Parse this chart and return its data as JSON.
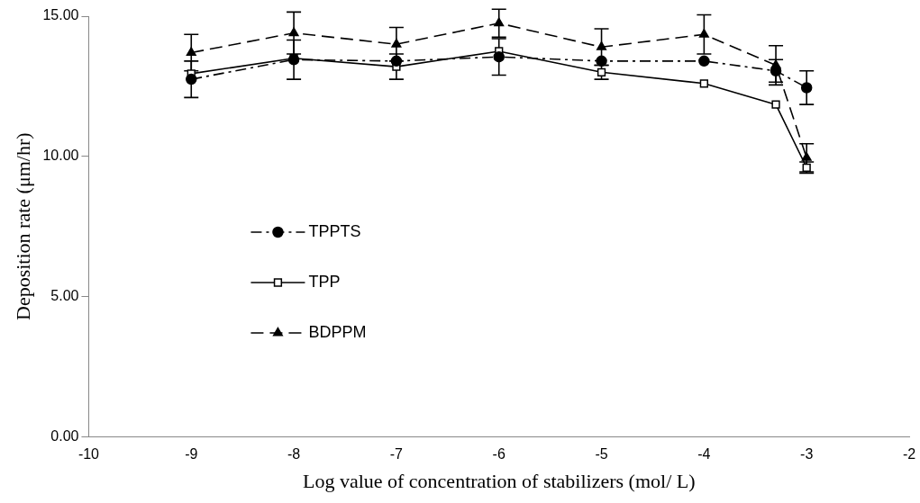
{
  "chart_data": {
    "type": "line",
    "xlabel": "Log value of concentration of stabilizers (mol/ L)",
    "ylabel": "Deposition rate (μm/hr)",
    "x": [
      -9,
      -8,
      -7,
      -6,
      -5,
      -4,
      -3.3,
      -3
    ],
    "series": [
      {
        "name": "TPPTS",
        "color": "#000000",
        "marker": "circle",
        "line_style": "dashdot",
        "values": [
          12.75,
          13.45,
          13.4,
          13.55,
          13.4,
          13.4,
          13.05,
          12.45
        ],
        "errors": [
          0.65,
          0.7,
          null,
          0.65,
          null,
          null,
          0.4,
          0.6
        ]
      },
      {
        "name": "TPP",
        "color": "#000000",
        "marker": "square",
        "line_style": "solid",
        "values": [
          12.95,
          13.5,
          13.2,
          13.75,
          13.0,
          12.6,
          11.85,
          9.6
        ],
        "errors": [
          null,
          null,
          0.45,
          null,
          0.25,
          null,
          null,
          0.2
        ]
      },
      {
        "name": "BDPPM",
        "color": "#000000",
        "marker": "triangle",
        "line_style": "dashed",
        "values": [
          13.7,
          14.4,
          14.0,
          14.75,
          13.9,
          14.35,
          13.25,
          9.95
        ],
        "errors": [
          0.65,
          0.75,
          0.6,
          0.5,
          0.65,
          0.7,
          0.7,
          0.5
        ]
      }
    ],
    "xlim": [
      -10,
      -2
    ],
    "xticks": [
      -10,
      -9,
      -8,
      -7,
      -6,
      -5,
      -4,
      -3,
      -2
    ],
    "ylim": [
      0,
      15
    ],
    "yticks": [
      {
        "value": 0,
        "label": "0.00"
      },
      {
        "value": 5,
        "label": "5.00"
      },
      {
        "value": 10,
        "label": "10.00"
      },
      {
        "value": 15,
        "label": "15.00"
      }
    ],
    "grid": false,
    "legend": "center left"
  }
}
